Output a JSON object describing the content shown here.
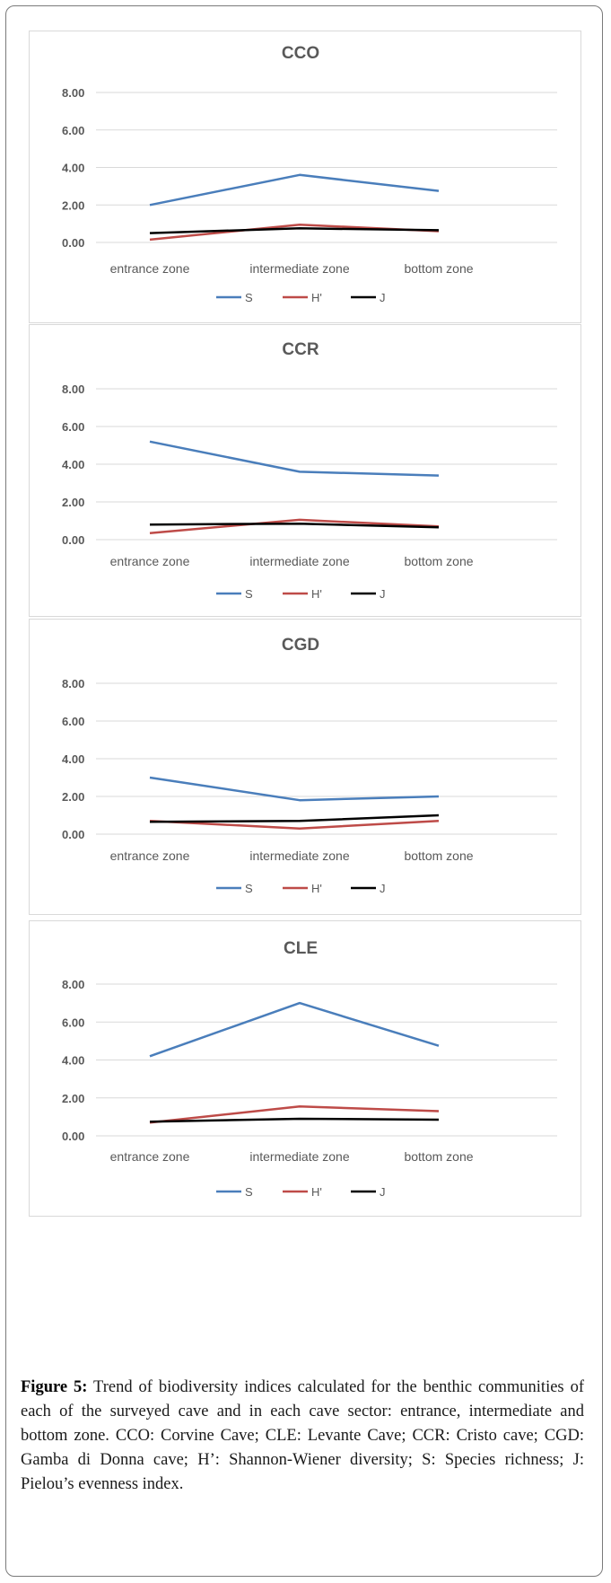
{
  "chart_data": [
    {
      "type": "line",
      "title": "CCO",
      "categories": [
        "entrance zone",
        "intermediate zone",
        "bottom zone"
      ],
      "ylim": [
        0,
        8
      ],
      "yticks": [
        "0.00",
        "2.00",
        "4.00",
        "6.00",
        "8.00"
      ],
      "grid": true,
      "legend_position": "bottom",
      "series": [
        {
          "name": "S",
          "values": [
            2.0,
            3.6,
            2.75
          ],
          "color": "#4a7ebb"
        },
        {
          "name": "H'",
          "values": [
            0.15,
            0.95,
            0.6
          ],
          "color": "#be4b48"
        },
        {
          "name": "J",
          "values": [
            0.5,
            0.75,
            0.65
          ],
          "color": "#000000"
        }
      ]
    },
    {
      "type": "line",
      "title": "CCR",
      "categories": [
        "entrance zone",
        "intermediate zone",
        "bottom zone"
      ],
      "ylim": [
        0,
        8
      ],
      "yticks": [
        "0.00",
        "2.00",
        "4.00",
        "6.00",
        "8.00"
      ],
      "grid": true,
      "legend_position": "bottom",
      "series": [
        {
          "name": "S",
          "values": [
            5.2,
            3.6,
            3.4
          ],
          "color": "#4a7ebb"
        },
        {
          "name": "H'",
          "values": [
            0.35,
            1.05,
            0.7
          ],
          "color": "#be4b48"
        },
        {
          "name": "J",
          "values": [
            0.8,
            0.85,
            0.65
          ],
          "color": "#000000"
        }
      ]
    },
    {
      "type": "line",
      "title": "CGD",
      "categories": [
        "entrance zone",
        "intermediate zone",
        "bottom zone"
      ],
      "ylim": [
        0,
        8
      ],
      "yticks": [
        "0.00",
        "2.00",
        "4.00",
        "6.00",
        "8.00"
      ],
      "grid": true,
      "legend_position": "bottom",
      "series": [
        {
          "name": "S",
          "values": [
            3.0,
            1.8,
            2.0
          ],
          "color": "#4a7ebb"
        },
        {
          "name": "H'",
          "values": [
            0.7,
            0.3,
            0.7
          ],
          "color": "#be4b48"
        },
        {
          "name": "J",
          "values": [
            0.65,
            0.7,
            1.0
          ],
          "color": "#000000"
        }
      ]
    },
    {
      "type": "line",
      "title": "CLE",
      "categories": [
        "entrance zone",
        "intermediate zone",
        "bottom zone"
      ],
      "ylim": [
        0,
        8
      ],
      "yticks": [
        "0.00",
        "2.00",
        "4.00",
        "6.00",
        "8.00"
      ],
      "grid": true,
      "legend_position": "bottom",
      "series": [
        {
          "name": "S",
          "values": [
            4.2,
            7.0,
            4.75
          ],
          "color": "#4a7ebb"
        },
        {
          "name": "H'",
          "values": [
            0.7,
            1.55,
            1.3
          ],
          "color": "#be4b48"
        },
        {
          "name": "J",
          "values": [
            0.75,
            0.9,
            0.85
          ],
          "color": "#000000"
        }
      ]
    }
  ],
  "caption": {
    "label": "Figure 5:",
    "text": " Trend of biodiversity indices calculated for the benthic communities of each of the surveyed cave and in each cave sector: entrance, intermediate and bottom zone. CCO: Corvine Cave; CLE: Levante Cave; CCR: Cristo cave; CGD: Gamba di Donna cave; H’: Shannon-Wiener diversity; S: Species richness; J: Pielou’s evenness index."
  }
}
